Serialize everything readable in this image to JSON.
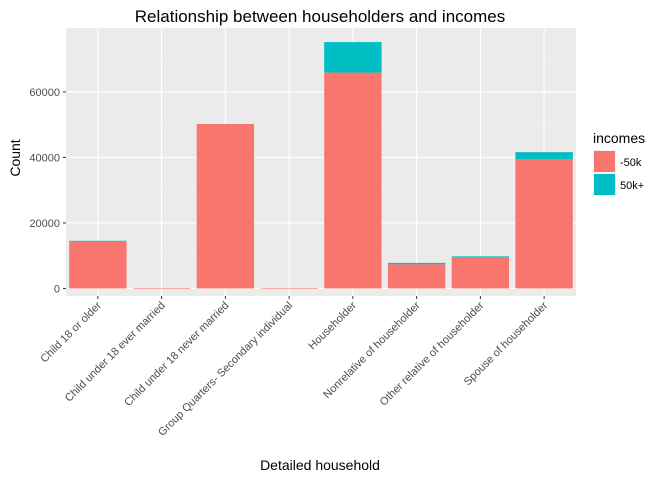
{
  "chart_data": {
    "type": "bar",
    "stacked": true,
    "title": "Relationship between householders and incomes",
    "xlabel": "Detailed household",
    "ylabel": "Count",
    "ylim": [
      -2300,
      79500
    ],
    "yticks": [
      0,
      20000,
      40000,
      60000
    ],
    "ytick_labels": [
      "0",
      "20000",
      "40000",
      "60000"
    ],
    "grid": true,
    "legend": {
      "title": "incomes",
      "position": "right"
    },
    "categories": [
      "Child 18 or older",
      "Child under 18 ever married",
      "Child under 18 never married",
      "Group Quarters- Secondary individual",
      "Householder",
      "Nonrelative of householder",
      "Other relative of householder",
      "Spouse of householder"
    ],
    "series": [
      {
        "name": "-50k",
        "color": "#F8766D",
        "values": [
          14400,
          60,
          50200,
          130,
          65900,
          7400,
          9600,
          39500
        ]
      },
      {
        "name": "50k+",
        "color": "#00BFC4",
        "values": [
          150,
          0,
          0,
          0,
          9300,
          400,
          200,
          2100
        ]
      }
    ],
    "colors": {
      "panel": "#EBEBEB",
      "grid_major": "#FFFFFF",
      "grid_minor": "#F2F2F2",
      "tick_text": "#4D4D4D",
      "tick_mark": "#333333"
    }
  }
}
